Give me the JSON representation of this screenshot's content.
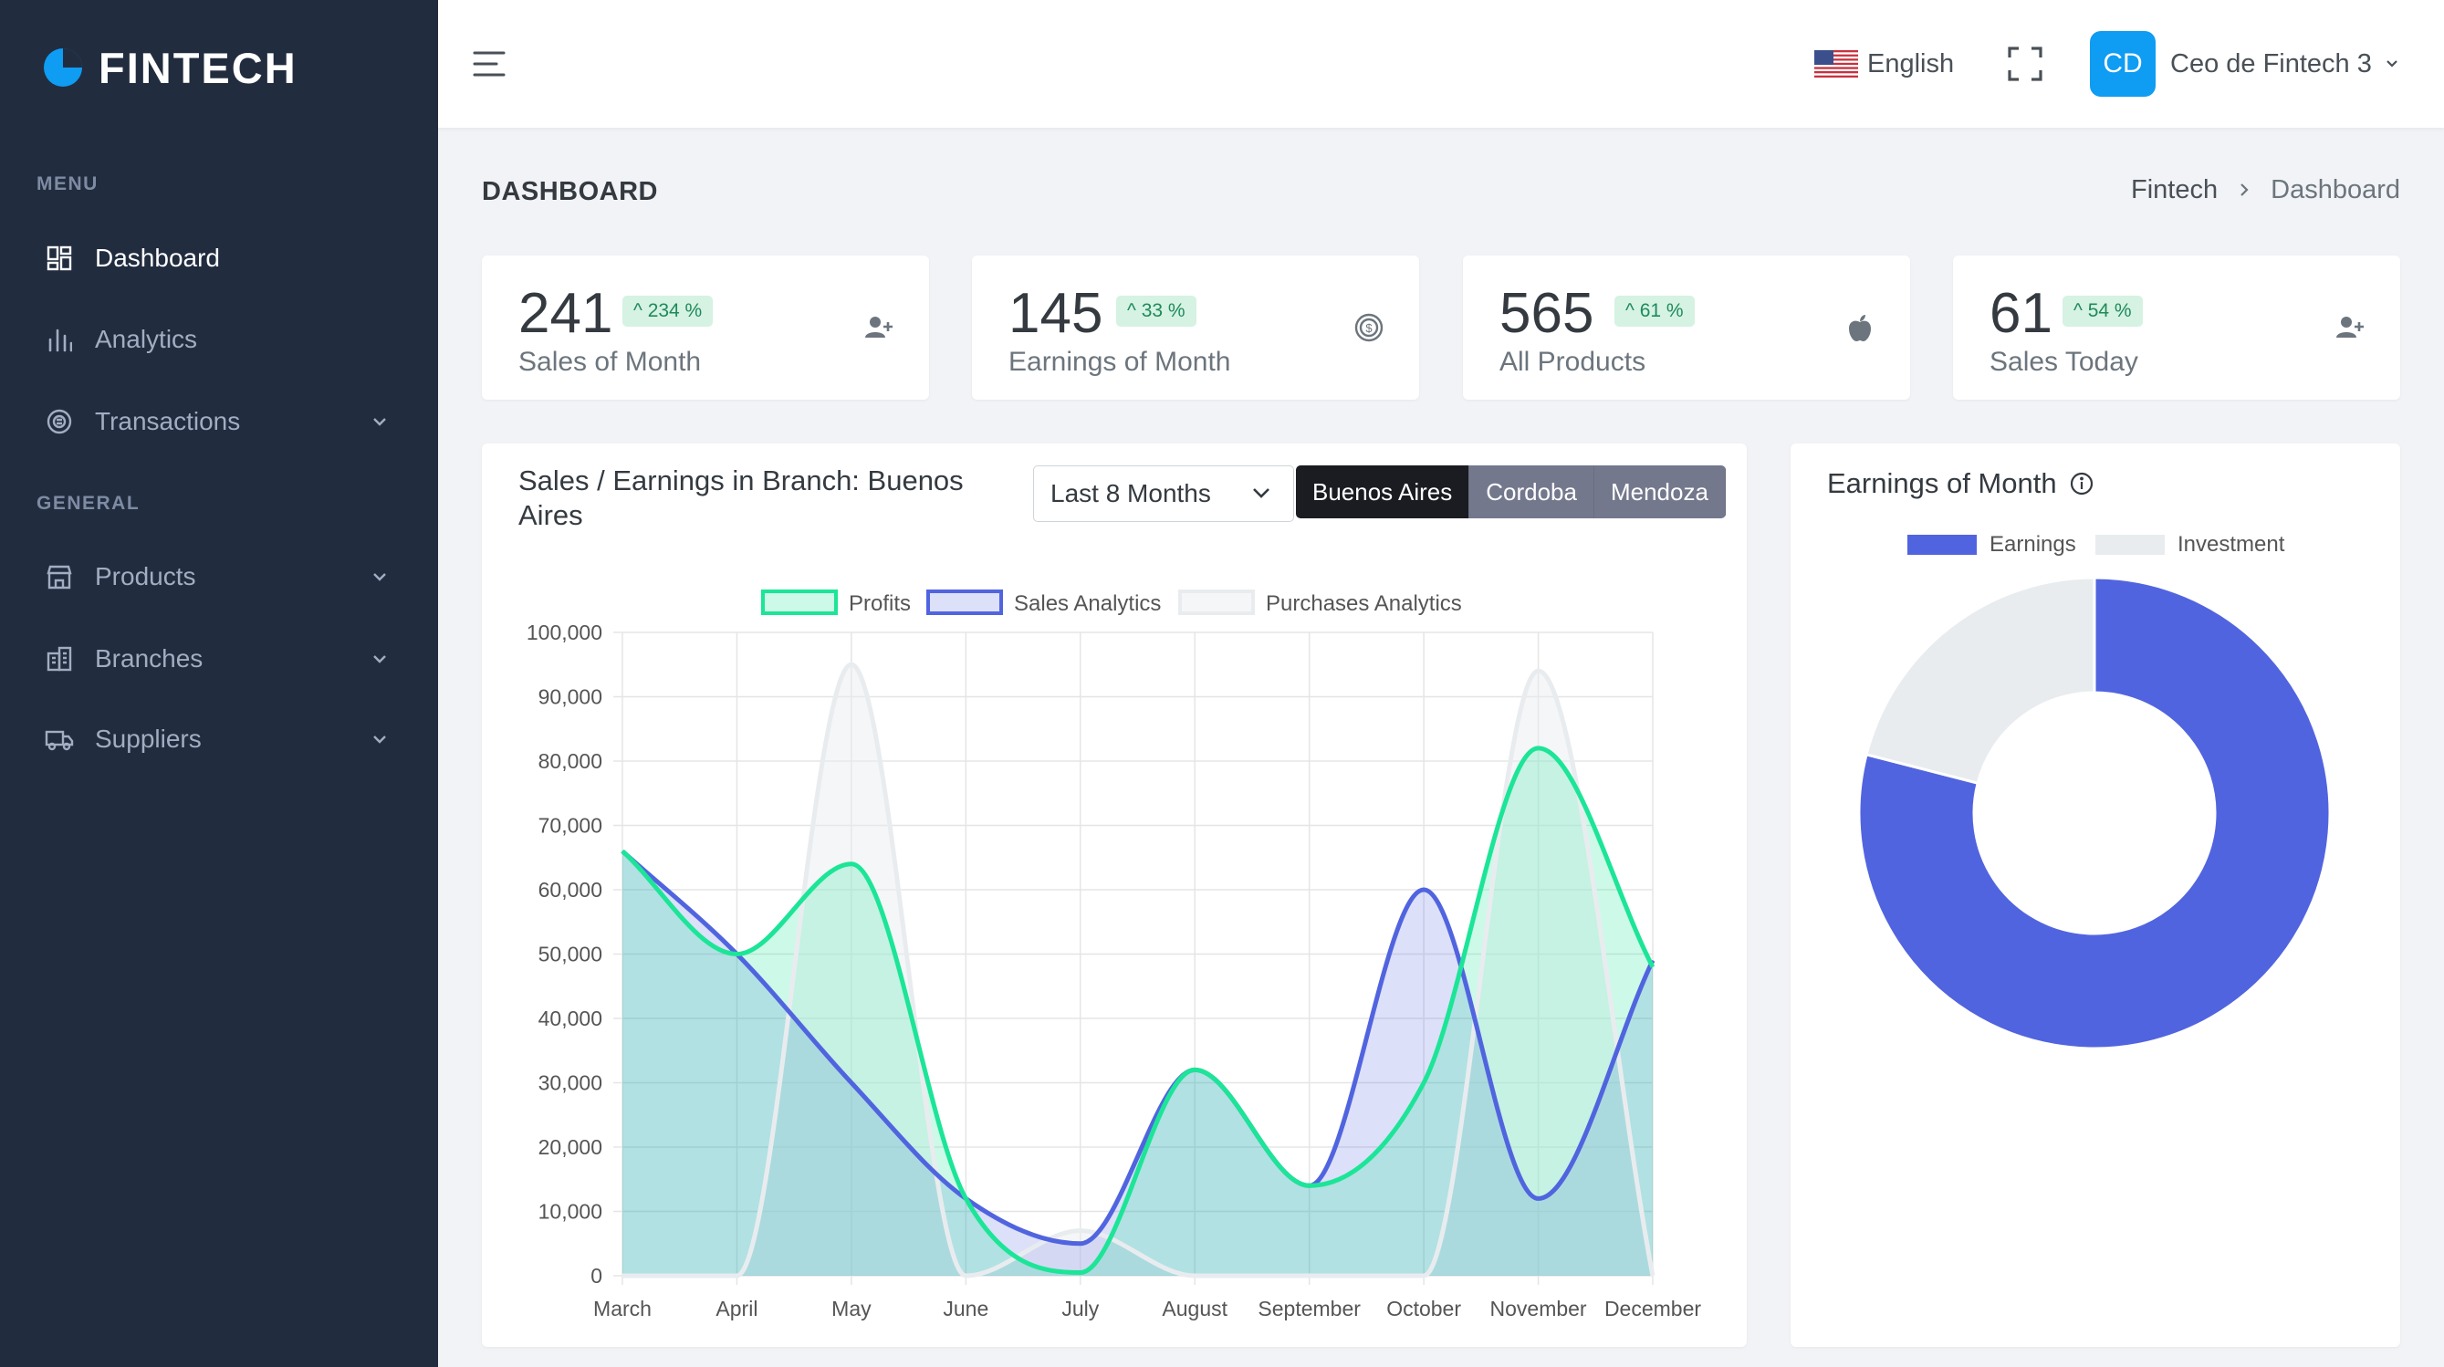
{
  "brand": {
    "name": "FINTECH"
  },
  "sidebar": {
    "menu_heading": "MENU",
    "general_heading": "GENERAL",
    "items": [
      {
        "label": "Dashboard",
        "icon": "dashboard-icon",
        "active": true,
        "has_children": false
      },
      {
        "label": "Analytics",
        "icon": "bar-chart-icon",
        "active": false,
        "has_children": false
      },
      {
        "label": "Transactions",
        "icon": "exchange-icon",
        "active": false,
        "has_children": true
      },
      {
        "label": "Products",
        "icon": "store-icon",
        "active": false,
        "has_children": true
      },
      {
        "label": "Branches",
        "icon": "building-icon",
        "active": false,
        "has_children": true
      },
      {
        "label": "Suppliers",
        "icon": "truck-icon",
        "active": false,
        "has_children": true
      }
    ]
  },
  "topbar": {
    "language": "English",
    "user_initials": "CD",
    "user_name": "Ceo de Fintech 3"
  },
  "page": {
    "title": "DASHBOARD",
    "breadcrumb": [
      "Fintech",
      "Dashboard"
    ]
  },
  "stats": [
    {
      "value": "241",
      "badge": "^ 234 %",
      "label": "Sales of Month",
      "icon": "user-plus-icon"
    },
    {
      "value": "145",
      "badge": "^ 33 %",
      "label": "Earnings of Month",
      "icon": "dollar-coin-icon"
    },
    {
      "value": "565",
      "badge": "^ 61 %",
      "label": "All Products",
      "icon": "apple-icon"
    },
    {
      "value": "61",
      "badge": "^ 54 %",
      "label": "Sales Today",
      "icon": "user-plus-icon"
    }
  ],
  "sales_card": {
    "title": "Sales / Earnings in Branch: Buenos Aires",
    "period": "Last 8 Months",
    "branches": [
      "Buenos Aires",
      "Cordoba",
      "Mendoza"
    ],
    "active_branch": "Buenos Aires"
  },
  "donut_card": {
    "title": "Earnings of Month"
  },
  "colors": {
    "sidebar_bg": "#222c3f",
    "accent": "#0f9cf3",
    "profits": "#1ce597",
    "sales": "#5164df",
    "purchases": "#e9ecef",
    "badge_bg": "#d5f2e3"
  },
  "chart_data": [
    {
      "type": "line",
      "title": "Sales / Earnings in Branch: Buenos Aires",
      "categories": [
        "March",
        "April",
        "May",
        "June",
        "July",
        "August",
        "September",
        "October",
        "November",
        "December"
      ],
      "ylim": [
        0,
        100000
      ],
      "yticks": [
        "0",
        "10,000",
        "20,000",
        "30,000",
        "40,000",
        "50,000",
        "60,000",
        "70,000",
        "80,000",
        "90,000",
        "100,000"
      ],
      "series": [
        {
          "name": "Profits",
          "values": [
            66000,
            50000,
            64000,
            12000,
            500,
            32000,
            14000,
            30000,
            82000,
            48000
          ]
        },
        {
          "name": "Sales Analytics",
          "values": [
            66000,
            50000,
            30000,
            12000,
            5000,
            32000,
            14000,
            60000,
            12000,
            49000
          ]
        },
        {
          "name": "Purchases Analytics",
          "values": [
            0,
            0,
            95000,
            0,
            7000,
            0,
            0,
            0,
            94000,
            0
          ]
        }
      ],
      "legend": "top"
    },
    {
      "type": "pie",
      "title": "Earnings of Month",
      "labels": [
        "Earnings",
        "Investment"
      ],
      "values": [
        79,
        21
      ],
      "legend": "top"
    }
  ]
}
